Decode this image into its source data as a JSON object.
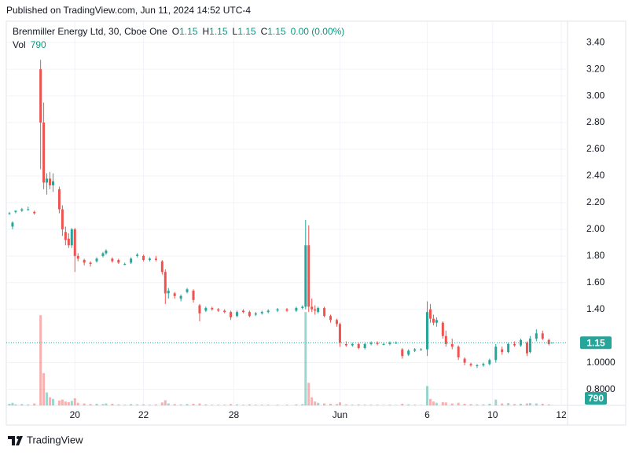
{
  "header": {
    "published": "Published on TradingView.com, Jun 11, 2024 14:52 UTC-4"
  },
  "footer": {
    "brand": "TradingView"
  },
  "chart_data": {
    "type": "candlestick",
    "legend": {
      "symbol": "Brenmiller Energy Ltd, 30, Cboe One",
      "open_label": "O",
      "high_label": "H",
      "low_label": "L",
      "close_label": "C",
      "change": "0.00 (0.00%)",
      "volume_label": "Vol"
    },
    "x": [
      1,
      2,
      3,
      5,
      7,
      9,
      11,
      12,
      13,
      14,
      15,
      17,
      18,
      19,
      20,
      21,
      22,
      23,
      25,
      27,
      29,
      31,
      32,
      34,
      36,
      38,
      40,
      42,
      44,
      46,
      48,
      50,
      51,
      52,
      54,
      56,
      58,
      60,
      62,
      64,
      66,
      68,
      70,
      72,
      74,
      76,
      78,
      80,
      82,
      84,
      87,
      90,
      93,
      95,
      96,
      97,
      98,
      99,
      100,
      102,
      104,
      106,
      107,
      109,
      111,
      113,
      115,
      117,
      119,
      121,
      123,
      125,
      127,
      129,
      131,
      133,
      135,
      136,
      137,
      138,
      140,
      141,
      143,
      145,
      147,
      149,
      151,
      153,
      155,
      157,
      159,
      161,
      163,
      165,
      167,
      168,
      170,
      172,
      174,
      175
    ],
    "open": [
      2.12,
      2.02,
      2.13,
      2.14,
      2.15,
      2.13,
      3.2,
      2.8,
      2.35,
      2.38,
      2.33,
      2.3,
      2.15,
      1.98,
      1.93,
      1.88,
      2.0,
      1.8,
      1.77,
      1.75,
      1.76,
      1.8,
      1.82,
      1.78,
      1.77,
      1.74,
      1.75,
      1.8,
      1.8,
      1.77,
      1.78,
      1.76,
      1.68,
      1.52,
      1.52,
      1.48,
      1.53,
      1.54,
      1.43,
      1.39,
      1.41,
      1.4,
      1.39,
      1.38,
      1.35,
      1.39,
      1.38,
      1.36,
      1.37,
      1.38,
      1.39,
      1.4,
      1.39,
      1.41,
      1.42,
      1.88,
      1.42,
      1.4,
      1.38,
      1.41,
      1.35,
      1.32,
      1.29,
      1.14,
      1.13,
      1.14,
      1.11,
      1.14,
      1.15,
      1.14,
      1.14,
      1.15,
      1.1,
      1.06,
      1.09,
      1.1,
      1.1,
      1.4,
      1.33,
      1.3,
      1.3,
      1.2,
      1.14,
      1.12,
      1.03,
      0.99,
      0.98,
      0.98,
      0.99,
      1.02,
      1.1,
      1.08,
      1.14,
      1.13,
      1.15,
      1.08,
      1.18,
      1.22,
      1.17,
      1.15
    ],
    "high": [
      2.13,
      2.06,
      2.14,
      2.16,
      2.17,
      2.14,
      3.27,
      2.95,
      2.42,
      2.43,
      2.42,
      2.32,
      2.18,
      2.02,
      1.97,
      2.01,
      2.01,
      1.82,
      1.78,
      1.76,
      1.79,
      1.83,
      1.85,
      1.79,
      1.78,
      1.75,
      1.79,
      1.82,
      1.81,
      1.79,
      1.8,
      1.77,
      1.7,
      1.56,
      1.53,
      1.51,
      1.56,
      1.55,
      1.44,
      1.42,
      1.42,
      1.41,
      1.4,
      1.39,
      1.39,
      1.4,
      1.39,
      1.38,
      1.39,
      1.4,
      1.41,
      1.41,
      1.42,
      1.43,
      2.07,
      2.03,
      1.48,
      1.43,
      1.42,
      1.42,
      1.36,
      1.33,
      1.3,
      1.16,
      1.15,
      1.15,
      1.15,
      1.16,
      1.16,
      1.15,
      1.16,
      1.16,
      1.11,
      1.1,
      1.11,
      1.11,
      1.46,
      1.44,
      1.36,
      1.34,
      1.31,
      1.24,
      1.18,
      1.13,
      1.04,
      1.0,
      0.99,
      1.0,
      1.03,
      1.14,
      1.12,
      1.15,
      1.16,
      1.18,
      1.16,
      1.2,
      1.25,
      1.24,
      1.18,
      1.15
    ],
    "low": [
      2.11,
      2.0,
      2.12,
      2.13,
      2.14,
      2.11,
      2.45,
      2.3,
      2.26,
      2.3,
      2.28,
      2.12,
      1.95,
      1.88,
      1.86,
      1.86,
      1.68,
      1.76,
      1.73,
      1.72,
      1.75,
      1.79,
      1.81,
      1.75,
      1.74,
      1.73,
      1.74,
      1.79,
      1.76,
      1.76,
      1.76,
      1.66,
      1.44,
      1.48,
      1.48,
      1.46,
      1.52,
      1.45,
      1.31,
      1.38,
      1.39,
      1.38,
      1.37,
      1.32,
      1.34,
      1.37,
      1.34,
      1.35,
      1.36,
      1.37,
      1.38,
      1.38,
      1.38,
      1.4,
      1.4,
      1.38,
      1.38,
      1.36,
      1.37,
      1.34,
      1.3,
      1.27,
      1.12,
      1.12,
      1.12,
      1.1,
      1.1,
      1.13,
      1.13,
      1.13,
      1.13,
      1.14,
      1.03,
      1.05,
      1.08,
      1.09,
      1.05,
      1.3,
      1.28,
      1.27,
      1.18,
      1.12,
      1.1,
      1.02,
      0.98,
      0.97,
      0.96,
      0.97,
      0.98,
      1.0,
      1.06,
      1.07,
      1.12,
      1.12,
      1.05,
      1.07,
      1.16,
      1.17,
      1.13,
      1.15
    ],
    "close": [
      2.12,
      2.05,
      2.14,
      2.15,
      2.15,
      2.12,
      2.8,
      2.35,
      2.38,
      2.33,
      2.36,
      2.15,
      2.0,
      1.92,
      1.88,
      2.0,
      1.8,
      1.78,
      1.75,
      1.74,
      1.78,
      1.82,
      1.84,
      1.76,
      1.75,
      1.74,
      1.78,
      1.81,
      1.77,
      1.78,
      1.77,
      1.68,
      1.52,
      1.54,
      1.5,
      1.5,
      1.55,
      1.47,
      1.37,
      1.41,
      1.4,
      1.39,
      1.38,
      1.34,
      1.38,
      1.38,
      1.35,
      1.37,
      1.38,
      1.39,
      1.4,
      1.39,
      1.41,
      1.42,
      1.88,
      1.42,
      1.4,
      1.39,
      1.41,
      1.35,
      1.32,
      1.29,
      1.15,
      1.13,
      1.14,
      1.11,
      1.14,
      1.15,
      1.14,
      1.14,
      1.15,
      1.15,
      1.05,
      1.09,
      1.1,
      1.1,
      1.38,
      1.33,
      1.3,
      1.32,
      1.2,
      1.14,
      1.12,
      1.04,
      1.0,
      0.98,
      0.98,
      0.99,
      1.02,
      1.12,
      1.08,
      1.14,
      1.13,
      1.17,
      1.07,
      1.18,
      1.22,
      1.18,
      1.14,
      1.15
    ],
    "volume": [
      5000,
      8000,
      3000,
      4000,
      3000,
      6000,
      280000,
      100000,
      40000,
      25000,
      20000,
      15000,
      18000,
      12000,
      10000,
      14000,
      22000,
      8000,
      6000,
      4000,
      5000,
      4000,
      6000,
      5000,
      3000,
      2000,
      4000,
      3000,
      3000,
      2000,
      3000,
      9000,
      16000,
      6000,
      4000,
      3000,
      4000,
      5000,
      6000,
      3000,
      2000,
      2000,
      2000,
      4000,
      3000,
      2000,
      3000,
      2000,
      2000,
      2000,
      2000,
      2000,
      3000,
      4000,
      290000,
      70000,
      25000,
      12000,
      8000,
      6000,
      5000,
      4000,
      9000,
      3000,
      2000,
      3000,
      2000,
      2000,
      2000,
      1000,
      2000,
      1000,
      5000,
      3000,
      2000,
      1000,
      60000,
      20000,
      12000,
      8000,
      10000,
      9000,
      6000,
      8000,
      5000,
      4000,
      3000,
      3000,
      5000,
      18000,
      6000,
      7000,
      4000,
      5000,
      6000,
      7000,
      6000,
      5000,
      3000,
      790
    ],
    "up_color": "#26a69a",
    "down_color": "#ef5350",
    "xlim": [
      0,
      180
    ],
    "xticks": [
      {
        "value": 22,
        "label": "20"
      },
      {
        "value": 44,
        "label": "22"
      },
      {
        "value": 73,
        "label": "28"
      },
      {
        "value": 107,
        "label": "Jun"
      },
      {
        "value": 135,
        "label": "6"
      },
      {
        "value": 156,
        "label": "10"
      },
      {
        "value": 178,
        "label": "12"
      }
    ],
    "ylim": [
      0.68,
      3.56
    ],
    "yticks": [
      {
        "value": 0.8,
        "label": "0.8000"
      },
      {
        "value": 1,
        "label": "1.0000"
      },
      {
        "value": 1.4,
        "label": "1.40"
      },
      {
        "value": 1.6,
        "label": "1.60"
      },
      {
        "value": 1.8,
        "label": "1.80"
      },
      {
        "value": 2,
        "label": "2.00"
      },
      {
        "value": 2.2,
        "label": "2.20"
      },
      {
        "value": 2.4,
        "label": "2.40"
      },
      {
        "value": 2.6,
        "label": "2.60"
      },
      {
        "value": 2.8,
        "label": "2.80"
      },
      {
        "value": 3,
        "label": "3.00"
      },
      {
        "value": 3.2,
        "label": "3.20"
      },
      {
        "value": 3.4,
        "label": "3.40"
      }
    ],
    "volume_lim": [
      0,
      300000
    ],
    "grid": true
  }
}
